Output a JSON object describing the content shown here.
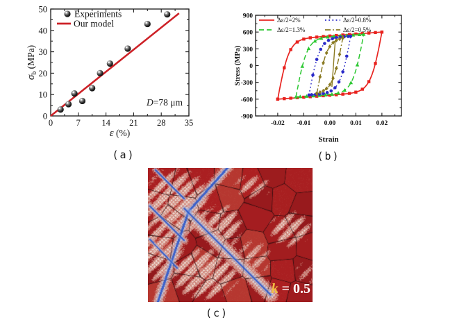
{
  "figure": {
    "background": "#ffffff"
  },
  "panels": {
    "a": {
      "caption": "(a)",
      "xlabel": {
        "sym": "ε",
        "rest": " (%)"
      },
      "ylabel": {
        "sym": "σ",
        "sub": "b",
        "rest": " (MPa)"
      },
      "annotation": {
        "italic": "D",
        "rest": "=78 μm"
      },
      "legend": [
        "Experiments",
        "Our model"
      ]
    },
    "b": {
      "caption": "(b)",
      "xlabel": "Strain",
      "ylabel": "Stress (MPa)",
      "legend": [
        "Δε/2=2%",
        "Δε/2=1.3%",
        "Δε/2=0.8%",
        "Δε/2=0.5%"
      ]
    },
    "c": {
      "caption": "(c)",
      "k_label": {
        "italic": "k",
        "rest": " = 0.5"
      },
      "colors": {
        "matrix_red": "#a31a1d",
        "slip_band_light": "#edddd4",
        "hatch_red": "#c55c4e",
        "band_blue": "#305ccd",
        "blue_line": "#3460cd",
        "grain_boundary": "#2d0c0e",
        "label_k": "#f2bf42",
        "label_value": "#ffffff"
      }
    }
  },
  "chart_data": [
    {
      "panel": "a",
      "type": "scatter",
      "title": "",
      "xlabel": "ε (%)",
      "ylabel": "σb (MPa)",
      "xlim": [
        0,
        35
      ],
      "ylim": [
        0,
        50
      ],
      "xticks": [
        0,
        7,
        14,
        21,
        28,
        35
      ],
      "yticks": [
        0,
        10,
        20,
        30,
        40,
        50
      ],
      "grid": false,
      "legend_position": "top-left",
      "annotation": {
        "italic": "D",
        "rest": "=78 μm",
        "x": 33.5,
        "y": 5.5
      },
      "series": [
        {
          "name": "Experiments",
          "type": "scatter",
          "marker": "sphere",
          "color": "#111111",
          "points": [
            [
              2.5,
              3
            ],
            [
              4.5,
              5.5
            ],
            [
              6,
              10.5
            ],
            [
              8,
              7
            ],
            [
              10.5,
              13
            ],
            [
              12.5,
              20
            ],
            [
              15,
              24.5
            ],
            [
              19.5,
              31.5
            ],
            [
              24.5,
              43
            ],
            [
              29.5,
              47.5
            ]
          ]
        },
        {
          "name": "Our model",
          "type": "line",
          "color": "#cd2127",
          "line_width": 2.6,
          "points": [
            [
              0,
              0
            ],
            [
              32.5,
              48
            ]
          ]
        }
      ]
    },
    {
      "panel": "b",
      "type": "line",
      "subtype": "hysteresis-loops",
      "title": "",
      "xlabel": "Strain",
      "ylabel": "Stress (MPa)",
      "xlim": [
        -0.0285,
        0.0275
      ],
      "ylim": [
        -900,
        900
      ],
      "xticks": [
        -0.02,
        -0.01,
        0,
        0.01,
        0.02
      ],
      "yticks": [
        -900,
        -600,
        -300,
        0,
        300,
        600,
        900
      ],
      "grid": false,
      "legend_position": "top-inside",
      "elastic_modulus_MPa": 245000,
      "series": [
        {
          "name": "Δε/2=2%",
          "color": "#e8231f",
          "dash": "solid",
          "marker": "square",
          "strain_amplitude": 0.02,
          "stress_peak": 600,
          "hardening": 3500
        },
        {
          "name": "Δε/2=1.3%",
          "color": "#2cc832",
          "dash": "dashed",
          "marker": "triangle",
          "strain_amplitude": 0.013,
          "stress_peak": 560,
          "hardening": 3000
        },
        {
          "name": "Δε/2=0.8%",
          "color": "#2a2ac8",
          "dash": "dotted",
          "marker": "circle",
          "strain_amplitude": 0.008,
          "stress_peak": 525,
          "hardening": 2500
        },
        {
          "name": "Δε/2=0.5%",
          "color": "#8a7a22",
          "dash": "dashdot",
          "marker": "diamond",
          "strain_amplitude": 0.005,
          "stress_peak": 505,
          "hardening": 5000
        }
      ],
      "initial_loading_line": {
        "color": "#8a7a22",
        "from": [
          0.0008,
          -380
        ],
        "to": [
          0.0021,
          455
        ]
      }
    }
  ]
}
